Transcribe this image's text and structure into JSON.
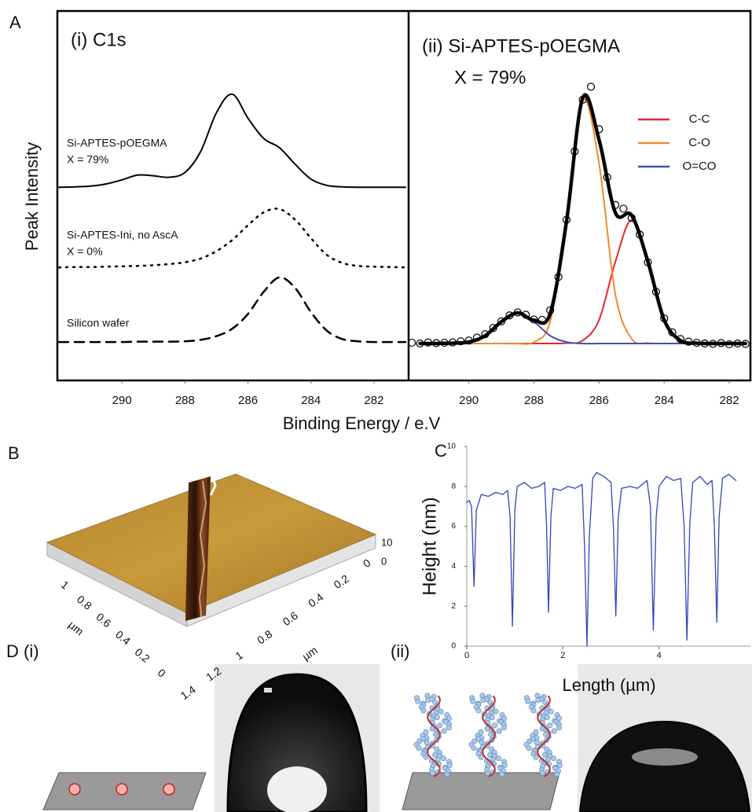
{
  "panel_labels": {
    "a": "A",
    "b": "B",
    "c": "C",
    "d": "D (i)",
    "d_ii": "(ii)"
  },
  "chart_data": [
    {
      "type": "line",
      "smooth": true,
      "title": "(i) C1s",
      "xlabel": "Binding Energy / e.V",
      "ylabel": "Peak Intensity",
      "x": [
        292,
        291.5,
        291,
        290.5,
        290,
        289.5,
        289,
        288.5,
        288,
        287.5,
        287,
        286.5,
        286,
        285.5,
        285,
        284.5,
        284,
        283.5,
        283,
        282.5,
        282,
        281.5,
        281
      ],
      "xlim": [
        292.05,
        280.9
      ],
      "xticks": [
        290,
        288,
        286,
        284,
        282
      ],
      "ylim": [
        0,
        100
      ],
      "series": [
        {
          "name": "Si-APTES-pOEGMA",
          "note": "X = 79%",
          "color": "#000000",
          "dash": "solid",
          "width": 2,
          "values": [
            52.3,
            52.4,
            52.6,
            53.2,
            54.3,
            55.6,
            55.4,
            55.0,
            56.3,
            62.0,
            72.5,
            77.5,
            71.0,
            65.5,
            63.0,
            58.5,
            54.5,
            52.8,
            52.4,
            52.3,
            52.3,
            52.3,
            52.3
          ]
        },
        {
          "name": "Si-APTES-Ini, no AscA",
          "note": "X = 0%",
          "color": "#000000",
          "dash": "dotted",
          "width": 2.5,
          "values": [
            30.6,
            30.7,
            30.7,
            30.8,
            30.9,
            31.0,
            31.2,
            31.5,
            32.0,
            33.0,
            35.0,
            38.0,
            42.0,
            45.5,
            46.4,
            43.5,
            38.5,
            34.0,
            31.8,
            31.0,
            30.8,
            30.7,
            30.6
          ]
        },
        {
          "name": "Silicon wafer",
          "color": "#000000",
          "dash": "dashed",
          "width": 2.5,
          "values": [
            10.4,
            10.4,
            10.4,
            10.4,
            10.4,
            10.5,
            10.5,
            10.5,
            10.6,
            11.0,
            12.0,
            14.0,
            18.0,
            24.0,
            27.9,
            25.0,
            18.5,
            13.5,
            11.2,
            10.6,
            10.4,
            10.4,
            10.4
          ]
        }
      ]
    },
    {
      "type": "line",
      "smooth": true,
      "title": "(ii) Si-APTES-pOEGMA",
      "subtitle": "X = 79%",
      "x": [
        291.5,
        291,
        290.5,
        290,
        289.5,
        289,
        288.5,
        288,
        287.5,
        287,
        286.5,
        286,
        285.5,
        285,
        284.5,
        284,
        283.5,
        283,
        282.5,
        282,
        281.5
      ],
      "xlim": [
        291.85,
        281.35
      ],
      "xticks": [
        290,
        288,
        286,
        284,
        282
      ],
      "ylim": [
        0,
        100
      ],
      "series": [
        {
          "name": "C-C",
          "color": "#e8262b",
          "dash": "solid",
          "width": 2,
          "values": [
            10,
            10,
            10,
            10,
            10,
            10,
            10,
            10,
            10,
            10.1,
            10.8,
            16.4,
            32.1,
            43.4,
            32.1,
            16.4,
            10.8,
            10.1,
            10,
            10,
            10
          ]
        },
        {
          "name": "C-O",
          "color": "#f28a2e",
          "dash": "solid",
          "width": 2,
          "values": [
            10,
            10,
            10,
            10,
            10,
            10,
            10,
            10.4,
            16.0,
            42.6,
            75.7,
            58.7,
            23.3,
            11.3,
            10.1,
            10,
            10,
            10,
            10,
            10,
            10
          ]
        },
        {
          "name": "O=CO",
          "color": "#3f4fb5",
          "dash": "solid",
          "width": 2,
          "values": [
            10,
            10,
            10.1,
            10.4,
            12.1,
            15.9,
            18.3,
            15.9,
            12.1,
            10.4,
            10,
            10,
            10,
            10,
            10,
            10,
            10,
            10,
            10,
            10,
            10
          ]
        },
        {
          "color": "#000000",
          "dash": "solid",
          "width": 4.5,
          "values": [
            10,
            10,
            10.1,
            10.4,
            12.1,
            15.9,
            18.3,
            16.3,
            18.1,
            43.0,
            76.5,
            65.1,
            45.4,
            44.7,
            32.2,
            16.4,
            10.8,
            10.1,
            10,
            10,
            10
          ]
        }
      ],
      "measured": {
        "marker": "open-circle",
        "color": "#000000",
        "x": [
          291.75,
          291.5,
          291.25,
          291,
          290.75,
          290.5,
          290.25,
          290,
          289.75,
          289.5,
          289.25,
          289,
          288.75,
          288.5,
          288.25,
          288,
          287.75,
          287.5,
          287.25,
          287,
          286.75,
          286.5,
          286.25,
          286,
          285.75,
          285.5,
          285.25,
          285,
          284.75,
          284.5,
          284.25,
          284,
          283.75,
          283.5,
          283.25,
          283,
          282.75,
          282.5,
          282.25,
          282,
          281.75,
          281.5
        ],
        "values": [
          10.2,
          10.0,
          10.3,
          10.1,
          10.2,
          10.3,
          10.6,
          10.8,
          11.6,
          12.5,
          14.2,
          16.0,
          17.6,
          18.4,
          17.8,
          16.5,
          16.4,
          19.0,
          28.0,
          43.5,
          62.0,
          76.0,
          79.5,
          68.0,
          55.0,
          47.5,
          46.5,
          44.0,
          39.5,
          32.0,
          24.0,
          16.8,
          13.0,
          11.2,
          10.5,
          10.2,
          10.0,
          9.9,
          10.1,
          9.8,
          10.0,
          9.9
        ]
      }
    },
    {
      "type": "line",
      "smooth": false,
      "xlabel": "Length (µm)",
      "ylabel": "Height (nm)",
      "color": "#3344bb",
      "x": [
        0,
        0.05,
        0.1,
        0.15,
        0.2,
        0.3,
        0.45,
        0.6,
        0.75,
        0.85,
        0.9,
        0.95,
        1.0,
        1.05,
        1.2,
        1.35,
        1.5,
        1.62,
        1.66,
        1.7,
        1.75,
        1.8,
        1.95,
        2.1,
        2.25,
        2.4,
        2.45,
        2.5,
        2.55,
        2.62,
        2.7,
        2.85,
        3.0,
        3.05,
        3.1,
        3.15,
        3.22,
        3.4,
        3.55,
        3.75,
        3.82,
        3.88,
        3.94,
        4.0,
        4.15,
        4.3,
        4.45,
        4.52,
        4.58,
        4.64,
        4.7,
        4.85,
        5.0,
        5.1,
        5.15,
        5.2,
        5.25,
        5.32,
        5.45,
        5.6
      ],
      "values": [
        7.2,
        7.3,
        7.0,
        3.0,
        6.8,
        7.6,
        7.5,
        7.7,
        7.6,
        7.8,
        6.5,
        1.0,
        6.8,
        8.0,
        8.2,
        7.9,
        8.0,
        8.2,
        6.0,
        1.7,
        6.5,
        7.9,
        7.8,
        8.0,
        7.9,
        8.1,
        5.0,
        0.0,
        5.5,
        8.4,
        8.7,
        8.5,
        8.2,
        6.0,
        1.5,
        6.4,
        7.9,
        8.0,
        7.9,
        8.3,
        7.0,
        0.8,
        6.5,
        8.0,
        8.5,
        8.3,
        8.4,
        6.0,
        0.3,
        6.2,
        8.2,
        8.5,
        8.1,
        8.3,
        6.0,
        1.2,
        6.5,
        8.4,
        8.6,
        8.3
      ],
      "xlim": [
        0,
        5.9
      ],
      "xticks": [
        0,
        2,
        4
      ],
      "ylim": [
        0,
        10
      ],
      "yticks": [
        0,
        2,
        4,
        6,
        8,
        10
      ]
    }
  ],
  "afm": {
    "front_ticks": [
      "1",
      "0.8",
      "0.6",
      "0.4",
      "0.2",
      "0"
    ],
    "front_unit": "µm",
    "side_ticks": [
      "1.4",
      "1.2",
      "1",
      "0.8",
      "0.6",
      "0.4",
      "0.2",
      "0"
    ],
    "side_unit": "µm",
    "z_ticks": [
      "10",
      "0"
    ]
  }
}
